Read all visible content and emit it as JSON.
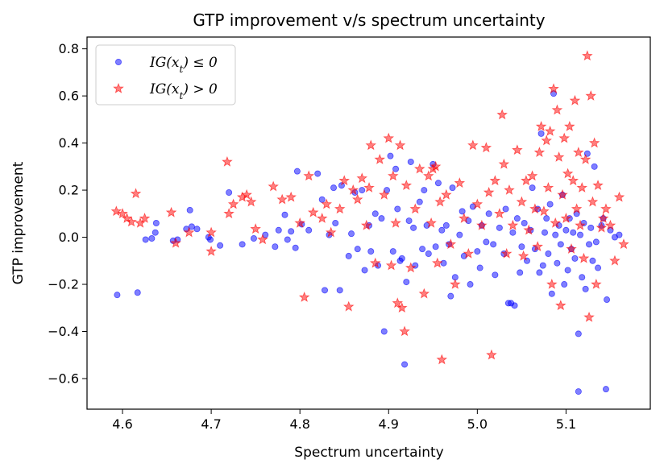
{
  "chart_data": {
    "type": "scatter",
    "title": "GTP improvement v/s spectrum uncertainty",
    "xlabel": "Spectrum uncertainty",
    "ylabel": "GTP improvement",
    "xlim": [
      4.56,
      5.195
    ],
    "ylim": [
      -0.73,
      0.85
    ],
    "xticks": [
      4.6,
      4.7,
      4.8,
      4.9,
      5.0,
      5.1
    ],
    "yticks": [
      -0.6,
      -0.4,
      -0.2,
      0.0,
      0.2,
      0.4,
      0.6,
      0.8
    ],
    "grid": false,
    "legend_position": "top-left",
    "series": [
      {
        "name": "IG(x_t) ≤ 0",
        "legend_main": "IG(x",
        "legend_sub": "t",
        "legend_rest": ") ≤ 0",
        "marker": "circle",
        "color": "#0000ff",
        "points": [
          [
            4.594,
            -0.245
          ],
          [
            4.617,
            -0.235
          ],
          [
            4.626,
            -0.01
          ],
          [
            4.633,
            -0.005
          ],
          [
            4.637,
            0.02
          ],
          [
            4.638,
            0.06
          ],
          [
            4.657,
            -0.015
          ],
          [
            4.662,
            -0.01
          ],
          [
            4.672,
            0.035
          ],
          [
            4.676,
            0.115
          ],
          [
            4.678,
            0.045
          ],
          [
            4.684,
            0.035
          ],
          [
            4.697,
            0.0
          ],
          [
            4.699,
            -0.01
          ],
          [
            4.71,
            -0.035
          ],
          [
            4.72,
            0.19
          ],
          [
            4.735,
            -0.03
          ],
          [
            4.748,
            -0.005
          ],
          [
            4.761,
            0.01
          ],
          [
            4.772,
            -0.04
          ],
          [
            4.776,
            0.03
          ],
          [
            4.783,
            0.095
          ],
          [
            4.786,
            -0.01
          ],
          [
            4.79,
            0.025
          ],
          [
            4.795,
            -0.045
          ],
          [
            4.797,
            0.28
          ],
          [
            4.802,
            0.055
          ],
          [
            4.81,
            0.03
          ],
          [
            4.82,
            0.27
          ],
          [
            4.825,
            0.16
          ],
          [
            4.828,
            -0.225
          ],
          [
            4.833,
            0.01
          ],
          [
            4.838,
            0.21
          ],
          [
            4.84,
            0.06
          ],
          [
            4.845,
            -0.225
          ],
          [
            4.847,
            0.22
          ],
          [
            4.855,
            -0.08
          ],
          [
            4.858,
            0.015
          ],
          [
            4.862,
            0.19
          ],
          [
            4.865,
            -0.05
          ],
          [
            4.87,
            0.2
          ],
          [
            4.873,
            -0.14
          ],
          [
            4.878,
            0.05
          ],
          [
            4.88,
            -0.06
          ],
          [
            4.885,
            0.1
          ],
          [
            4.888,
            -0.12
          ],
          [
            4.892,
            0.08
          ],
          [
            4.895,
            -0.4
          ],
          [
            4.898,
            0.2
          ],
          [
            4.902,
            0.345
          ],
          [
            4.905,
            -0.06
          ],
          [
            4.908,
            0.29
          ],
          [
            4.91,
            0.12
          ],
          [
            4.913,
            -0.1
          ],
          [
            4.915,
            -0.09
          ],
          [
            4.918,
            -0.54
          ],
          [
            4.92,
            -0.19
          ],
          [
            4.923,
            0.07
          ],
          [
            4.925,
            0.32
          ],
          [
            4.928,
            0.04
          ],
          [
            4.93,
            -0.12
          ],
          [
            4.935,
            0.15
          ],
          [
            4.938,
            -0.05
          ],
          [
            4.94,
            0.2
          ],
          [
            4.943,
            0.05
          ],
          [
            4.945,
            -0.07
          ],
          [
            4.95,
            0.31
          ],
          [
            4.953,
            -0.04
          ],
          [
            4.956,
            0.23
          ],
          [
            4.96,
            0.03
          ],
          [
            4.962,
            -0.11
          ],
          [
            4.965,
            0.05
          ],
          [
            4.968,
            -0.03
          ],
          [
            4.97,
            -0.25
          ],
          [
            4.972,
            0.21
          ],
          [
            4.975,
            -0.17
          ],
          [
            4.98,
            0.01
          ],
          [
            4.983,
            0.11
          ],
          [
            4.985,
            -0.08
          ],
          [
            4.99,
            0.07
          ],
          [
            4.992,
            -0.2
          ],
          [
            4.995,
            0.13
          ],
          [
            5.0,
            -0.06
          ],
          [
            5.003,
            -0.13
          ],
          [
            5.005,
            0.05
          ],
          [
            5.01,
            -0.02
          ],
          [
            5.013,
            0.1
          ],
          [
            5.018,
            -0.03
          ],
          [
            5.02,
            -0.16
          ],
          [
            5.025,
            0.04
          ],
          [
            5.03,
            -0.07
          ],
          [
            5.032,
            0.12
          ],
          [
            5.035,
            -0.28
          ],
          [
            5.038,
            -0.28
          ],
          [
            5.04,
            0.02
          ],
          [
            5.042,
            -0.29
          ],
          [
            5.045,
            0.08
          ],
          [
            5.048,
            -0.15
          ],
          [
            5.05,
            -0.04
          ],
          [
            5.053,
            0.06
          ],
          [
            5.056,
            -0.1
          ],
          [
            5.06,
            0.03
          ],
          [
            5.062,
            0.21
          ],
          [
            5.065,
            -0.05
          ],
          [
            5.068,
            0.12
          ],
          [
            5.07,
            -0.15
          ],
          [
            5.072,
            0.44
          ],
          [
            5.074,
            -0.12
          ],
          [
            5.076,
            0.02
          ],
          [
            5.078,
            0.08
          ],
          [
            5.08,
            -0.07
          ],
          [
            5.082,
            0.14
          ],
          [
            5.084,
            -0.24
          ],
          [
            5.086,
            0.61
          ],
          [
            5.088,
            0.01
          ],
          [
            5.09,
            -0.11
          ],
          [
            5.092,
            0.05
          ],
          [
            5.094,
            -0.03
          ],
          [
            5.096,
            0.18
          ],
          [
            5.098,
            -0.2
          ],
          [
            5.1,
            0.03
          ],
          [
            5.102,
            -0.14
          ],
          [
            5.104,
            0.08
          ],
          [
            5.106,
            -0.05
          ],
          [
            5.108,
            0.02
          ],
          [
            5.11,
            -0.09
          ],
          [
            5.112,
            0.1
          ],
          [
            5.114,
            -0.41
          ],
          [
            5.114,
            -0.655
          ],
          [
            5.116,
            0.01
          ],
          [
            5.118,
            -0.17
          ],
          [
            5.12,
            0.06
          ],
          [
            5.122,
            -0.22
          ],
          [
            5.124,
            0.355
          ],
          [
            5.126,
            -0.03
          ],
          [
            5.128,
            0.04
          ],
          [
            5.13,
            -0.1
          ],
          [
            5.132,
            0.3
          ],
          [
            5.134,
            -0.02
          ],
          [
            5.136,
            -0.13
          ],
          [
            5.14,
            0.05
          ],
          [
            5.142,
            0.08
          ],
          [
            5.145,
            -0.645
          ],
          [
            5.146,
            -0.265
          ],
          [
            5.15,
            0.03
          ],
          [
            5.155,
            0.0
          ],
          [
            5.16,
            0.01
          ]
        ]
      },
      {
        "name": "IG(x_t) > 0",
        "legend_main": "IG(x",
        "legend_sub": "t",
        "legend_rest": ") > 0",
        "marker": "star",
        "color": "#ff0000",
        "points": [
          [
            4.593,
            0.11
          ],
          [
            4.6,
            0.1
          ],
          [
            4.605,
            0.08
          ],
          [
            4.61,
            0.065
          ],
          [
            4.615,
            0.185
          ],
          [
            4.62,
            0.06
          ],
          [
            4.625,
            0.08
          ],
          [
            4.655,
            0.105
          ],
          [
            4.66,
            -0.025
          ],
          [
            4.675,
            0.02
          ],
          [
            4.7,
            0.02
          ],
          [
            4.7,
            -0.06
          ],
          [
            4.718,
            0.32
          ],
          [
            4.72,
            0.1
          ],
          [
            4.725,
            0.14
          ],
          [
            4.735,
            0.17
          ],
          [
            4.74,
            0.18
          ],
          [
            4.745,
            0.15
          ],
          [
            4.75,
            0.035
          ],
          [
            4.758,
            -0.01
          ],
          [
            4.77,
            0.215
          ],
          [
            4.78,
            0.16
          ],
          [
            4.79,
            0.17
          ],
          [
            4.8,
            0.06
          ],
          [
            4.805,
            -0.255
          ],
          [
            4.81,
            0.26
          ],
          [
            4.815,
            0.105
          ],
          [
            4.825,
            0.08
          ],
          [
            4.83,
            0.14
          ],
          [
            4.835,
            0.02
          ],
          [
            4.845,
            0.12
          ],
          [
            4.85,
            0.24
          ],
          [
            4.855,
            -0.295
          ],
          [
            4.86,
            0.2
          ],
          [
            4.865,
            0.16
          ],
          [
            4.87,
            0.25
          ],
          [
            4.875,
            0.05
          ],
          [
            4.878,
            0.21
          ],
          [
            4.88,
            0.39
          ],
          [
            4.885,
            -0.11
          ],
          [
            4.89,
            0.33
          ],
          [
            4.895,
            0.18
          ],
          [
            4.9,
            0.42
          ],
          [
            4.903,
            -0.12
          ],
          [
            4.905,
            0.26
          ],
          [
            4.908,
            0.06
          ],
          [
            4.91,
            -0.28
          ],
          [
            4.913,
            0.39
          ],
          [
            4.915,
            -0.3
          ],
          [
            4.918,
            -0.4
          ],
          [
            4.92,
            0.22
          ],
          [
            4.925,
            -0.13
          ],
          [
            4.93,
            0.12
          ],
          [
            4.935,
            0.29
          ],
          [
            4.94,
            -0.24
          ],
          [
            4.945,
            0.26
          ],
          [
            4.948,
            0.06
          ],
          [
            4.95,
            0.29
          ],
          [
            4.953,
            0.3
          ],
          [
            4.955,
            -0.11
          ],
          [
            4.958,
            0.15
          ],
          [
            4.96,
            -0.52
          ],
          [
            4.965,
            0.18
          ],
          [
            4.97,
            -0.03
          ],
          [
            4.975,
            -0.2
          ],
          [
            4.98,
            0.23
          ],
          [
            4.985,
            0.08
          ],
          [
            4.99,
            -0.07
          ],
          [
            4.995,
            0.39
          ],
          [
            5.0,
            0.14
          ],
          [
            5.005,
            0.05
          ],
          [
            5.01,
            0.38
          ],
          [
            5.013,
            0.19
          ],
          [
            5.016,
            -0.5
          ],
          [
            5.02,
            0.24
          ],
          [
            5.025,
            0.1
          ],
          [
            5.028,
            0.52
          ],
          [
            5.03,
            0.31
          ],
          [
            5.033,
            -0.07
          ],
          [
            5.036,
            0.2
          ],
          [
            5.04,
            0.05
          ],
          [
            5.045,
            0.37
          ],
          [
            5.05,
            0.15
          ],
          [
            5.052,
            -0.08
          ],
          [
            5.055,
            0.24
          ],
          [
            5.058,
            0.03
          ],
          [
            5.062,
            0.26
          ],
          [
            5.065,
            0.12
          ],
          [
            5.068,
            -0.04
          ],
          [
            5.07,
            0.36
          ],
          [
            5.072,
            0.47
          ],
          [
            5.075,
            0.11
          ],
          [
            5.078,
            0.41
          ],
          [
            5.08,
            0.21
          ],
          [
            5.082,
            0.45
          ],
          [
            5.084,
            -0.2
          ],
          [
            5.086,
            0.63
          ],
          [
            5.088,
            0.06
          ],
          [
            5.09,
            0.54
          ],
          [
            5.092,
            0.34
          ],
          [
            5.094,
            -0.29
          ],
          [
            5.096,
            0.18
          ],
          [
            5.098,
            0.42
          ],
          [
            5.1,
            0.08
          ],
          [
            5.102,
            0.27
          ],
          [
            5.104,
            0.47
          ],
          [
            5.106,
            -0.05
          ],
          [
            5.108,
            0.24
          ],
          [
            5.11,
            0.58
          ],
          [
            5.112,
            0.12
          ],
          [
            5.114,
            0.36
          ],
          [
            5.116,
            0.05
          ],
          [
            5.118,
            0.21
          ],
          [
            5.12,
            -0.09
          ],
          [
            5.122,
            0.33
          ],
          [
            5.124,
            0.77
          ],
          [
            5.126,
            -0.34
          ],
          [
            5.128,
            0.6
          ],
          [
            5.13,
            0.15
          ],
          [
            5.132,
            0.4
          ],
          [
            5.134,
            -0.2
          ],
          [
            5.136,
            0.22
          ],
          [
            5.14,
            0.04
          ],
          [
            5.142,
            0.08
          ],
          [
            5.145,
            0.12
          ],
          [
            5.15,
            0.05
          ],
          [
            5.155,
            -0.1
          ],
          [
            5.16,
            0.17
          ],
          [
            5.165,
            -0.03
          ]
        ]
      }
    ]
  }
}
